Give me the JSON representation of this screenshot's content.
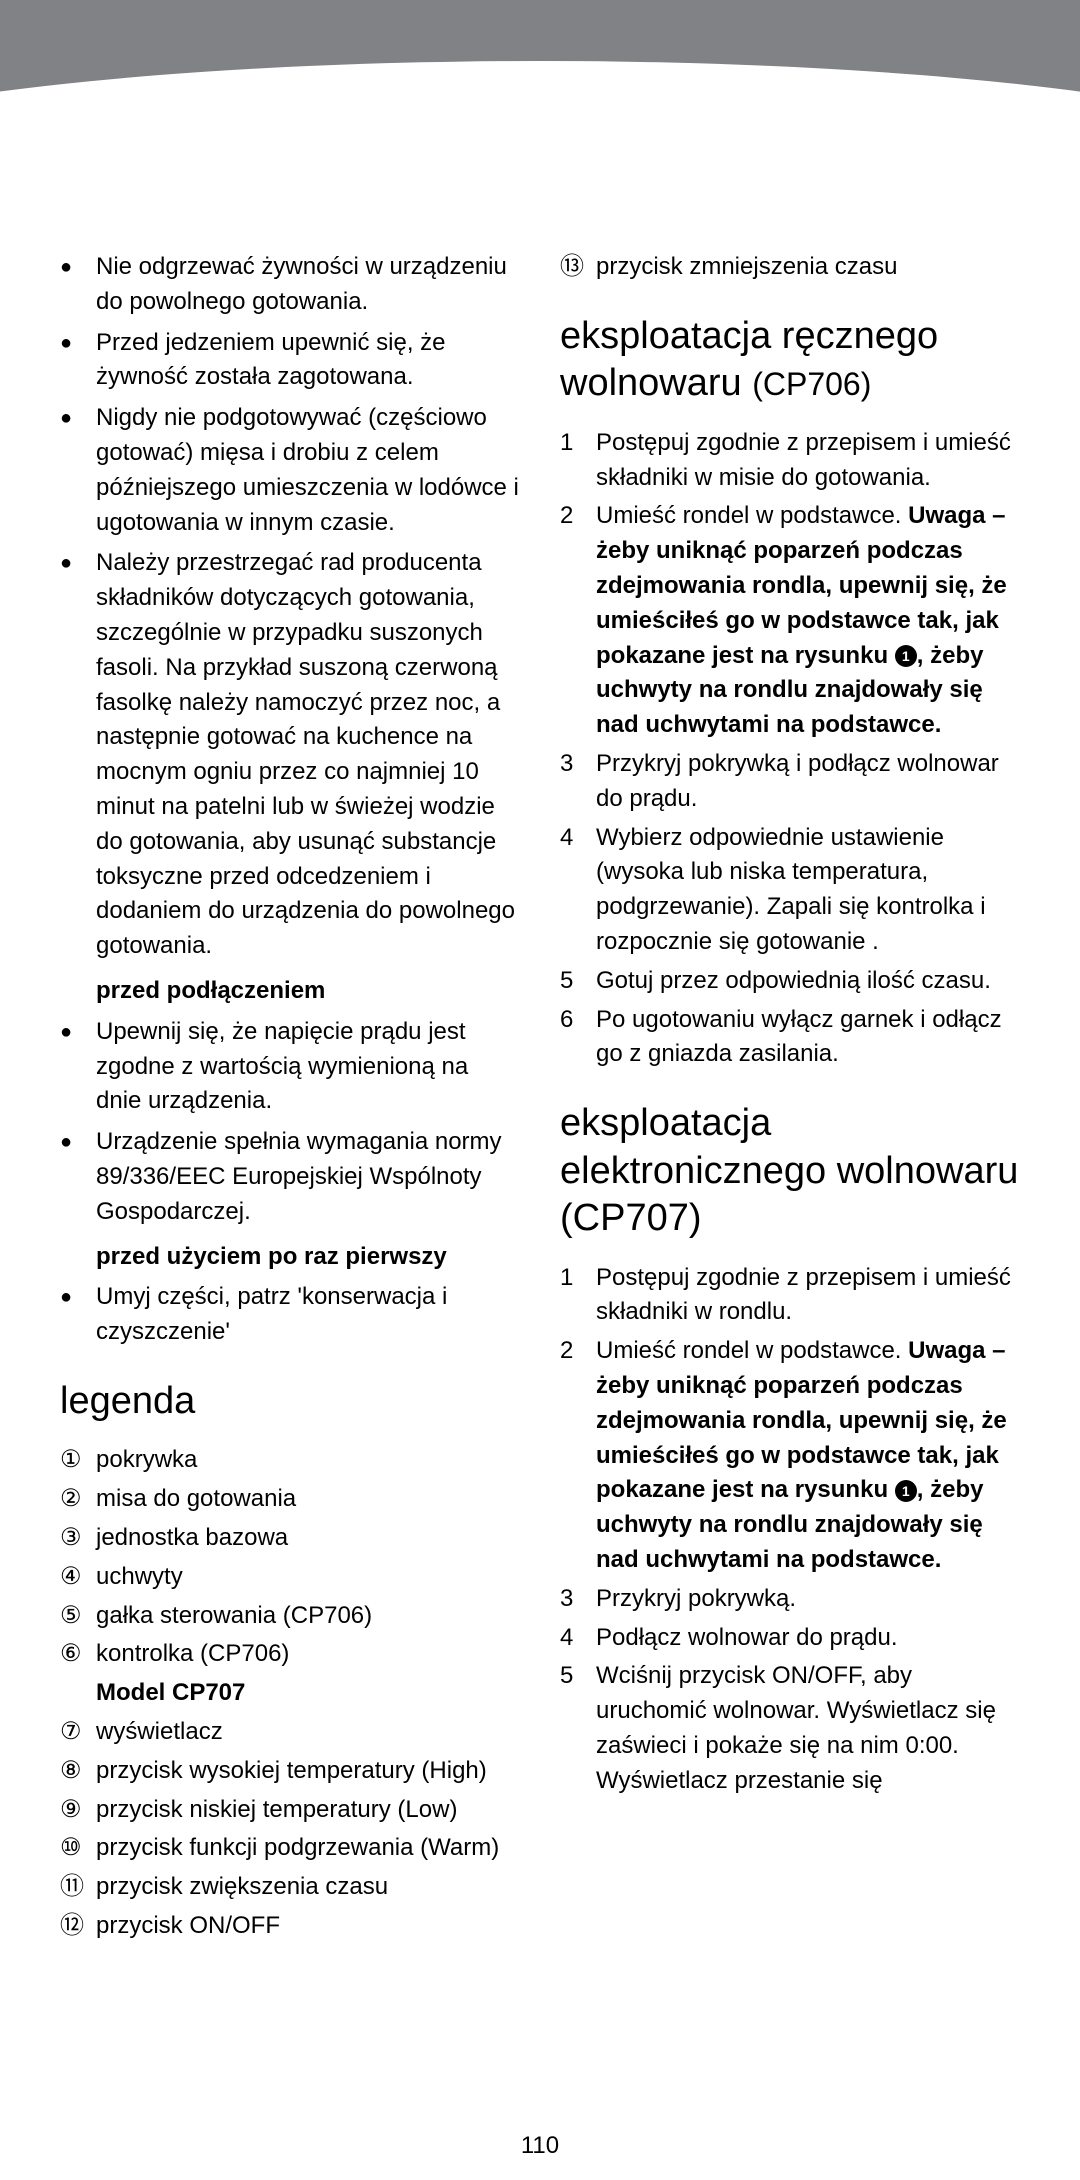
{
  "page_number": "110",
  "left": {
    "warnings": [
      "Nie odgrzewać żywności w urządzeniu do powolnego gotowania.",
      "Przed jedzeniem upewnić się, że żywność została zagotowana.",
      "Nigdy nie podgotowywać (częściowo gotować) mięsa i drobiu z celem późniejszego umieszczenia w lodówce i ugotowania w innym czasie.",
      "Należy przestrzegać rad producenta składników dotyczących gotowania, szczególnie w przypadku suszonych fasoli. Na przykład suszoną czerwoną fasolkę należy namoczyć przez noc, a następnie gotować na kuchence na mocnym ogniu przez co najmniej 10 minut na patelni lub w świeżej wodzie do gotowania, aby usunąć substancje toksyczne przed odcedzeniem i dodaniem do urządzenia do powolnego gotowania."
    ],
    "before_connect_head": "przed podłączeniem",
    "before_connect": [
      "Upewnij się, że napięcie prądu jest zgodne z wartością wymienioną na dnie urządzenia.",
      "Urządzenie spełnia wymagania normy 89/336/EEC Europejskiej Wspólnoty Gospodarczej."
    ],
    "first_use_head": "przed użyciem po raz pierwszy",
    "first_use": [
      "Umyj części, patrz 'konserwacja i czyszczenie'"
    ],
    "legend_title": "legenda",
    "legend_items": [
      {
        "m": "①",
        "t": "pokrywka"
      },
      {
        "m": "②",
        "t": "misa do gotowania"
      },
      {
        "m": "③",
        "t": "jednostka bazowa"
      },
      {
        "m": "④",
        "t": "uchwyty"
      },
      {
        "m": "⑤",
        "t": "gałka sterowania (CP706)"
      },
      {
        "m": "⑥",
        "t": "kontrolka (CP706)"
      }
    ],
    "legend_model_head": "Model CP707",
    "legend_items2": [
      {
        "m": "⑦",
        "t": "wyświetlacz"
      },
      {
        "m": "⑧",
        "t": "przycisk wysokiej temperatury (High)"
      },
      {
        "m": "⑨",
        "t": "przycisk niskiej temperatury (Low)"
      },
      {
        "m": "⑩",
        "t": "przycisk funkcji podgrzewania (Warm)"
      },
      {
        "m": "⑪",
        "t": "przycisk zwiększenia czasu"
      },
      {
        "m": "⑫",
        "t": "przycisk ON/OFF"
      }
    ]
  },
  "right": {
    "legend_cont": {
      "m": "⑬",
      "t": "przycisk zmniejszenia czasu"
    },
    "sec1_title_a": "eksploatacja ręcznego wolnowaru ",
    "sec1_title_b": "(CP706)",
    "sec1_steps": [
      {
        "n": "1",
        "t": "Postępuj zgodnie z przepisem i umieść składniki w misie do gotowania."
      },
      {
        "n": "2",
        "t": "Umieść rondel w podstawce.",
        "bold_a": "Uwaga – żeby uniknąć poparzeń podczas zdejmowania rondla, upewnij się, że umieściłeś go w podstawce tak, jak pokazane jest na rysunku ",
        "badge": "1",
        "bold_b": ", żeby uchwyty na rondlu znajdowały się nad uchwytami na podstawce."
      },
      {
        "n": "3",
        "t": "Przykryj pokrywką i podłącz wolnowar do prądu."
      },
      {
        "n": "4",
        "t": "Wybierz odpowiednie ustawienie (wysoka lub niska temperatura, podgrzewanie). Zapali się kontrolka i rozpocznie się gotowanie ."
      },
      {
        "n": "5",
        "t": "Gotuj przez odpowiednią ilość czasu."
      },
      {
        "n": "6",
        "t": "Po ugotowaniu wyłącz garnek i odłącz go z gniazda zasilania."
      }
    ],
    "sec2_title": "eksploatacja elektronicznego wolnowaru (CP707)",
    "sec2_steps": [
      {
        "n": "1",
        "t": "Postępuj zgodnie z przepisem i umieść składniki w rondlu."
      },
      {
        "n": "2",
        "t": "Umieść rondel w podstawce.",
        "bold_a": "Uwaga – żeby uniknąć poparzeń podczas zdejmowania rondla, upewnij się, że umieściłeś go w podstawce tak, jak pokazane jest na rysunku ",
        "badge": "1",
        "bold_b": ", żeby uchwyty na rondlu znajdowały się nad uchwytami na podstawce."
      },
      {
        "n": "3",
        "t": "Przykryj pokrywką."
      },
      {
        "n": "4",
        "t": "Podłącz wolnowar do prądu."
      },
      {
        "n": "5",
        "t": "Wciśnij przycisk ON/OFF, aby uruchomić wolnowar. Wyświetlacz się zaświeci i pokaże się na nim 0:00. Wyświetlacz przestanie się"
      }
    ]
  }
}
